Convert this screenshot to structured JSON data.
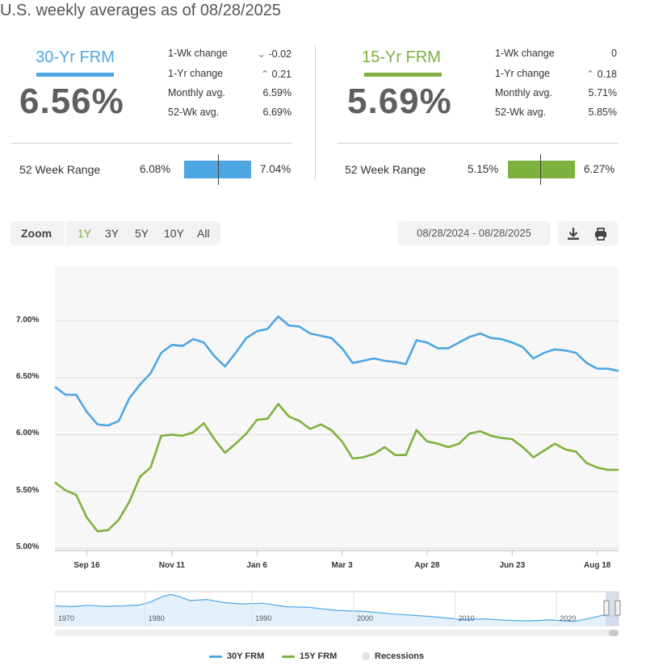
{
  "header": {
    "title": "U.S. weekly averages as of 08/28/2025"
  },
  "colors": {
    "frm30": "#4ea6e2",
    "frm15": "#7fb13f",
    "recession": "#e3e3e3"
  },
  "panels": [
    {
      "name": "30-Yr FRM",
      "rate": "6.56%",
      "stats": [
        {
          "label": "1-Wk change",
          "value": "-0.02",
          "direction": "down"
        },
        {
          "label": "1-Yr change",
          "value": "0.21",
          "direction": "up"
        },
        {
          "label": "Monthly avg.",
          "value": "6.59%"
        },
        {
          "label": "52-Wk avg.",
          "value": "6.69%"
        }
      ],
      "range_label": "52 Week Range",
      "range_low": "6.08%",
      "range_high": "7.04%",
      "range_current_fraction": 0.5
    },
    {
      "name": "15-Yr FRM",
      "rate": "5.69%",
      "stats": [
        {
          "label": "1-Wk change",
          "value": "0"
        },
        {
          "label": "1-Yr change",
          "value": "0.18",
          "direction": "up"
        },
        {
          "label": "Monthly avg.",
          "value": "5.71%"
        },
        {
          "label": "52-Wk avg.",
          "value": "5.85%"
        }
      ],
      "range_label": "52 Week Range",
      "range_low": "5.15%",
      "range_high": "6.27%",
      "range_current_fraction": 0.48
    }
  ],
  "toolbar": {
    "zoom_label": "Zoom",
    "zoom_options": [
      "1Y",
      "3Y",
      "5Y",
      "10Y",
      "All"
    ],
    "zoom_selected": "1Y",
    "date_range": "08/28/2024 - 08/28/2025",
    "download_icon": "download-icon",
    "print_icon": "print-icon"
  },
  "chart_data": {
    "type": "line",
    "y_ticks": [
      "5.00%",
      "5.50%",
      "6.00%",
      "6.50%",
      "7.00%"
    ],
    "ylim": [
      4.98,
      7.48
    ],
    "x_ticks": [
      "Sep 16",
      "Nov 11",
      "Jan 6",
      "Mar 3",
      "Apr 28",
      "Jun 23",
      "Aug 18"
    ],
    "x_tick_weeks": [
      3,
      11,
      19,
      27,
      35,
      43,
      51
    ],
    "grid": true,
    "series": [
      {
        "name": "30Y FRM",
        "color": "#4ea6e2",
        "values": [
          6.42,
          6.35,
          6.35,
          6.2,
          6.09,
          6.08,
          6.12,
          6.32,
          6.44,
          6.54,
          6.72,
          6.79,
          6.78,
          6.84,
          6.81,
          6.69,
          6.6,
          6.72,
          6.85,
          6.91,
          6.93,
          7.04,
          6.96,
          6.95,
          6.89,
          6.87,
          6.85,
          6.76,
          6.63,
          6.65,
          6.67,
          6.65,
          6.64,
          6.62,
          6.83,
          6.81,
          6.76,
          6.76,
          6.81,
          6.86,
          6.89,
          6.85,
          6.84,
          6.81,
          6.77,
          6.67,
          6.72,
          6.75,
          6.74,
          6.72,
          6.63,
          6.58,
          6.58,
          6.56
        ]
      },
      {
        "name": "15Y FRM",
        "color": "#7fb13f",
        "values": [
          5.58,
          5.51,
          5.47,
          5.27,
          5.15,
          5.16,
          5.25,
          5.41,
          5.63,
          5.71,
          5.99,
          6.0,
          5.99,
          6.02,
          6.1,
          5.96,
          5.84,
          5.92,
          6.01,
          6.13,
          6.14,
          6.27,
          6.16,
          6.12,
          6.05,
          6.09,
          6.04,
          5.94,
          5.79,
          5.8,
          5.83,
          5.89,
          5.82,
          5.82,
          6.04,
          5.94,
          5.92,
          5.89,
          5.92,
          6.01,
          6.03,
          5.99,
          5.97,
          5.96,
          5.89,
          5.8,
          5.86,
          5.92,
          5.87,
          5.85,
          5.75,
          5.71,
          5.69,
          5.69
        ]
      }
    ],
    "navigator": {
      "x_ticks": [
        "1970",
        "1980",
        "1990",
        "2000",
        "2010",
        "2020"
      ]
    },
    "legend": [
      "30Y FRM",
      "15Y FRM",
      "Recessions"
    ],
    "legend_position": "bottom-center"
  }
}
